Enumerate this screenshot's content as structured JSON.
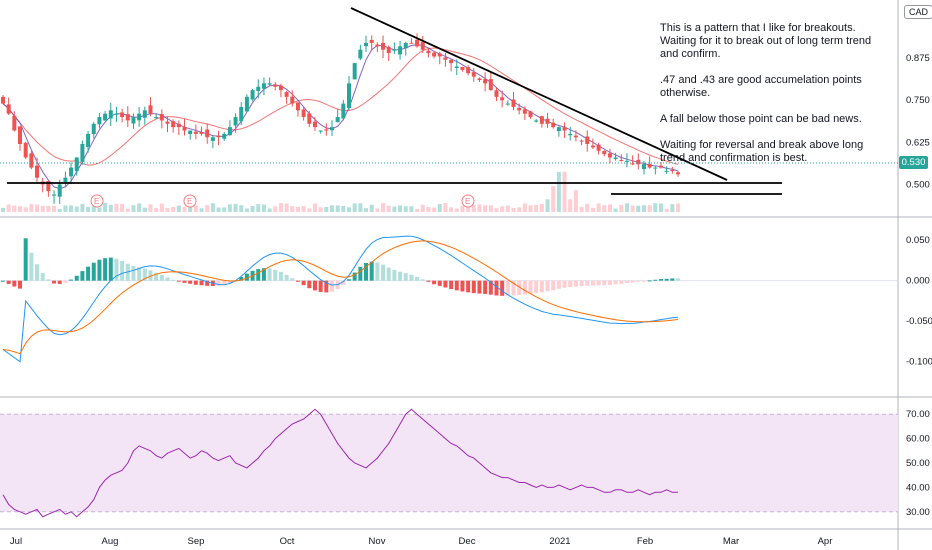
{
  "currency": "CAD",
  "last_price_label": "0.530",
  "notes": [
    "This is a pattern that I like for breakouts. Waiting for it to break out of long term trend and confirm.",
    ".47 and .43 are good accumelation points otherwise.",
    "A fall below those point can be bad news.",
    "Waiting for reversal and break above long trend and confirmation is best."
  ],
  "colors": {
    "up": "#26a69a",
    "down": "#ef5350",
    "macd_line": "#2196f3",
    "signal_line": "#ff6d00",
    "hist_up_strong": "#26a69a",
    "hist_up_weak": "#b2dfdb",
    "hist_down_strong": "#ef5350",
    "hist_down_weak": "#ffcdd2",
    "rsi_line": "#9c27b0",
    "rsi_band": "#f3e5f5",
    "ma_fast": "#673ab7",
    "ma_slow": "#ef5350"
  },
  "chart_data": [
    {
      "type": "candlestick",
      "price_axis": {
        "ticks": [
          "0.875",
          "0.750",
          "0.625",
          "0.500"
        ],
        "range": [
          0.43,
          1.0
        ]
      },
      "x_axis_labels": [
        "Jul",
        "Aug",
        "Sep",
        "Oct",
        "Nov",
        "Dec",
        "2021",
        "Feb",
        "Mar",
        "Apr"
      ],
      "earnings_markers": [
        "E",
        "E",
        "E"
      ],
      "trendlines": [
        "descending resistance",
        "support 0.47",
        "support 0.43"
      ],
      "close_approx": [
        0.74,
        0.71,
        0.66,
        0.62,
        0.58,
        0.55,
        0.52,
        0.5,
        0.48,
        0.47,
        0.5,
        0.52,
        0.55,
        0.58,
        0.62,
        0.65,
        0.68,
        0.7,
        0.71,
        0.72,
        0.71,
        0.7,
        0.69,
        0.7,
        0.71,
        0.72,
        0.71,
        0.7,
        0.69,
        0.68,
        0.67,
        0.67,
        0.66,
        0.66,
        0.65,
        0.65,
        0.64,
        0.64,
        0.64,
        0.65,
        0.67,
        0.7,
        0.73,
        0.76,
        0.78,
        0.79,
        0.8,
        0.8,
        0.79,
        0.78,
        0.76,
        0.74,
        0.72,
        0.7,
        0.68,
        0.67,
        0.66,
        0.66,
        0.67,
        0.7,
        0.74,
        0.8,
        0.86,
        0.9,
        0.92,
        0.92,
        0.91,
        0.9,
        0.89,
        0.9,
        0.91,
        0.92,
        0.92,
        0.91,
        0.9,
        0.89,
        0.88,
        0.88,
        0.87,
        0.86,
        0.85,
        0.84,
        0.83,
        0.82,
        0.81,
        0.8,
        0.78,
        0.76,
        0.75,
        0.74,
        0.73,
        0.72,
        0.71,
        0.7,
        0.69,
        0.68,
        0.68,
        0.67,
        0.67,
        0.66,
        0.65,
        0.64,
        0.63,
        0.62,
        0.61,
        0.6,
        0.59,
        0.58,
        0.58,
        0.57,
        0.57,
        0.56,
        0.56,
        0.56,
        0.55,
        0.55,
        0.55,
        0.54,
        0.54,
        0.53
      ]
    },
    {
      "type": "macd",
      "axis_ticks": [
        "0.050",
        "0.000",
        "-0.050",
        "-0.100"
      ],
      "range": [
        -0.13,
        0.065
      ]
    },
    {
      "type": "rsi",
      "axis_ticks": [
        "70.00",
        "60.00",
        "50.00",
        "40.00",
        "30.00"
      ],
      "range": [
        25,
        75
      ],
      "band": [
        30,
        70
      ],
      "values_approx": [
        37,
        33,
        31,
        30,
        29,
        30,
        31,
        28,
        29,
        30,
        31,
        29,
        30,
        28,
        30,
        32,
        35,
        40,
        43,
        45,
        46,
        47,
        50,
        55,
        57,
        56,
        55,
        53,
        52,
        54,
        55,
        56,
        54,
        52,
        53,
        55,
        54,
        52,
        51,
        52,
        53,
        50,
        49,
        48,
        50,
        52,
        55,
        57,
        60,
        62,
        64,
        66,
        67,
        68,
        70,
        72,
        70,
        66,
        62,
        58,
        55,
        52,
        50,
        49,
        48,
        50,
        52,
        55,
        58,
        62,
        66,
        70,
        72,
        70,
        68,
        66,
        64,
        62,
        60,
        58,
        57,
        55,
        53,
        52,
        50,
        48,
        46,
        45,
        44,
        44,
        43,
        42,
        42,
        41,
        40,
        41,
        40,
        40,
        41,
        40,
        39,
        40,
        41,
        40,
        40,
        39,
        38,
        38,
        39,
        39,
        38,
        38,
        39,
        38,
        37,
        38,
        38,
        39,
        38,
        38
      ]
    }
  ]
}
